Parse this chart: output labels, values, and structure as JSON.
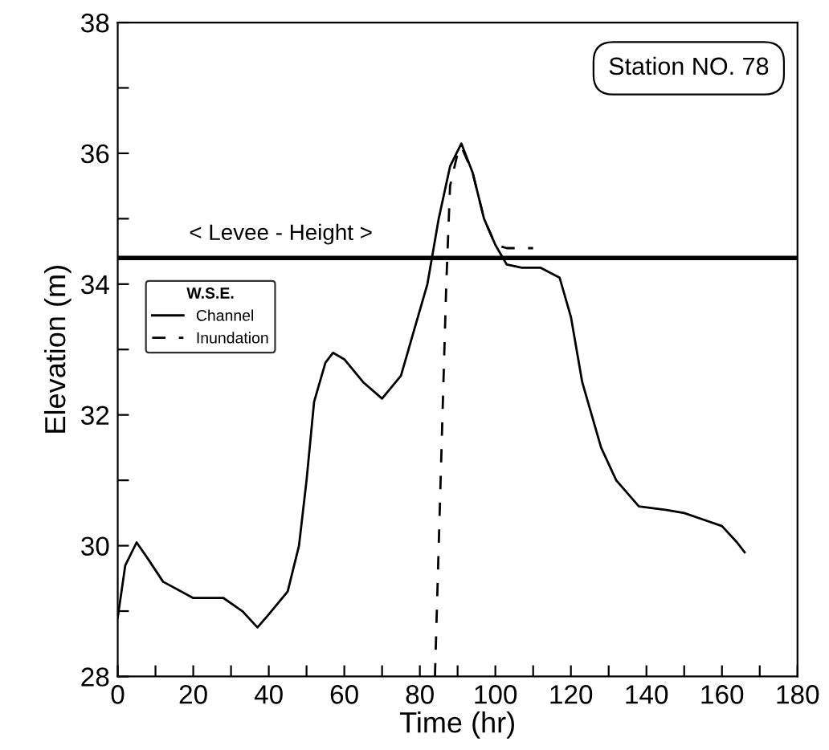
{
  "chart_data": {
    "type": "line",
    "xlabel": "Time (hr)",
    "ylabel": "Elevation (m)",
    "legend_title": "W.S.E.",
    "legend": "left",
    "xlim": [
      0,
      180
    ],
    "ylim": [
      28,
      38
    ],
    "xticks": [
      0,
      {
        "value": 10,
        "label": null
      },
      20,
      {
        "value": 30,
        "label": null
      },
      40,
      {
        "value": 50,
        "label": null
      },
      60,
      {
        "value": 70,
        "label": null
      },
      80,
      {
        "value": 90,
        "label": null
      },
      100,
      {
        "value": 110,
        "label": null
      },
      120,
      {
        "value": 130,
        "label": null
      },
      140,
      {
        "value": 150,
        "label": null
      },
      160,
      {
        "value": 170,
        "label": null
      },
      180
    ],
    "yticks": [
      28,
      {
        "value": 29,
        "label": null
      },
      30,
      {
        "value": 31,
        "label": null
      },
      32,
      {
        "value": 33,
        "label": null
      },
      34,
      {
        "value": 35,
        "label": null
      },
      36,
      {
        "value": 37,
        "label": null
      },
      38
    ],
    "grid": false,
    "annotations": [
      "Station NO. 78"
    ],
    "ref_lines": [
      {
        "axis": "y",
        "value": 34.4,
        "label": "< Levee - Height >",
        "color": "#000000",
        "line_style": "solid"
      }
    ],
    "series": [
      {
        "name": "Channel",
        "color": "#000000",
        "line_style": "solid",
        "x": [
          0,
          2,
          5,
          8,
          12,
          20,
          28,
          33,
          37,
          40,
          45,
          48,
          50,
          52,
          55,
          57,
          60,
          65,
          70,
          75,
          78,
          82,
          85,
          88,
          91,
          94,
          97,
          100,
          103,
          107,
          112,
          117,
          120,
          123,
          128,
          132,
          138,
          145,
          150,
          155,
          160,
          164,
          166
        ],
        "values": [
          28.9,
          29.7,
          30.05,
          29.8,
          29.45,
          29.2,
          29.2,
          29.0,
          28.75,
          28.95,
          29.3,
          30.0,
          31.0,
          32.2,
          32.8,
          32.95,
          32.85,
          32.5,
          32.25,
          32.6,
          33.2,
          34.0,
          35.0,
          35.8,
          36.15,
          35.7,
          35.0,
          34.6,
          34.3,
          34.25,
          34.25,
          34.1,
          33.5,
          32.5,
          31.5,
          31.0,
          30.6,
          30.55,
          30.5,
          30.4,
          30.3,
          30.05,
          29.9
        ]
      },
      {
        "name": "Inundation",
        "color": "#000000",
        "line_style": "dashed",
        "x": [
          84,
          85,
          86,
          87,
          88,
          90,
          91,
          94,
          97,
          100,
          103,
          110
        ],
        "values": [
          28.0,
          30.0,
          32.0,
          34.0,
          35.5,
          36.0,
          36.1,
          35.7,
          35.0,
          34.6,
          34.55,
          34.55
        ]
      }
    ]
  }
}
